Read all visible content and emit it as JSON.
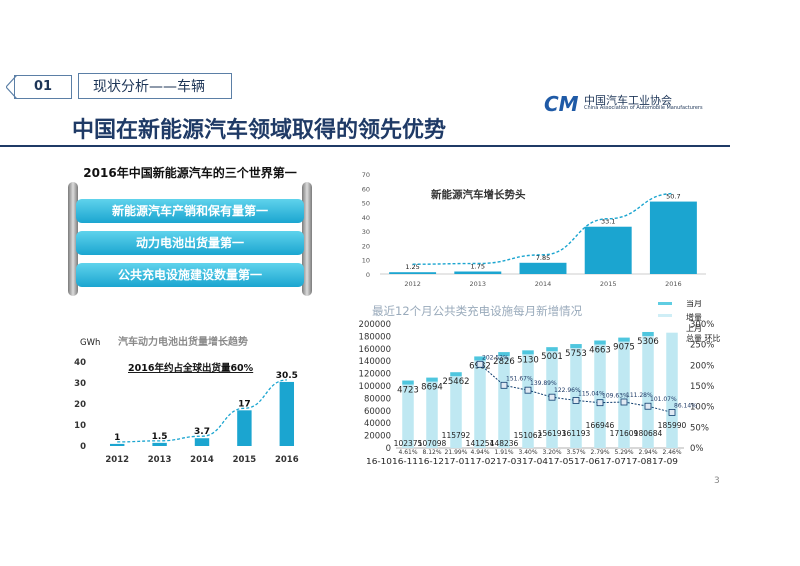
{
  "header": {
    "section_number": "01",
    "section_label": "现状分析——车辆"
  },
  "logo": {
    "mark": "CM",
    "name_cn": "中国汽车工业协会",
    "name_en": "China Association of Automobile Manufacturers"
  },
  "title": "中国在新能源汽车领域取得的领先优势",
  "panel1": {
    "title": "2016年中国新能源汽车的三个世界第一",
    "items": [
      "新能源汽车产销和保有量第一",
      "动力电池出货量第一",
      "公共充电设施建设数量第一"
    ]
  },
  "page_number": "3",
  "colors": {
    "bar": "#1ba5d0",
    "bar_light": "#bfe8f2",
    "title": "#1f3a66",
    "line": "#0f3d6e"
  },
  "chart_data": [
    {
      "id": "growth",
      "type": "bar",
      "title": "新能源汽车增长势头",
      "categories": [
        "2012",
        "2013",
        "2014",
        "2015",
        "2016"
      ],
      "values": [
        1.25,
        1.75,
        7.85,
        33.1,
        50.7
      ],
      "value_labels": [
        "1.25",
        "1.75",
        "7.85",
        "33.1",
        "50.7"
      ],
      "ylim": [
        0,
        70
      ],
      "yticks": [
        "0",
        "10",
        "20",
        "30",
        "40",
        "50",
        "60",
        "70"
      ],
      "xlabel": "",
      "ylabel": ""
    },
    {
      "id": "battery",
      "type": "bar",
      "title": "汽车动力电池出货量增长趋势",
      "ylabel": "GWh",
      "annotation": "2016年约占全球出货量60%",
      "categories": [
        "2012",
        "2013",
        "2014",
        "2015",
        "2016"
      ],
      "values": [
        1,
        1.5,
        3.7,
        17,
        30.5
      ],
      "value_labels": [
        "1",
        "1.5",
        "3.7",
        "17",
        "30.5"
      ],
      "ylim": [
        0,
        40
      ],
      "yticks": [
        "0",
        "10",
        "20",
        "30",
        "40"
      ]
    },
    {
      "id": "charging",
      "type": "bar",
      "title": "最近12个月公共类充电设施每月新增情况",
      "legend": [
        {
          "name": "当月增量",
          "type": "bar"
        },
        {
          "name": "上月总量",
          "type": "bar"
        },
        {
          "name": "环比",
          "type": "line"
        }
      ],
      "categories": [
        "16-10",
        "16-11",
        "16-12",
        "17-01",
        "17-02",
        "17-03",
        "17-04",
        "17-05",
        "17-06",
        "17-07",
        "17-08",
        "17-09"
      ],
      "x_axis_text": "16-1016-1116-1217-0117-0217-0317-0417-0517-0617-0717-0817-09",
      "series": [
        {
          "name": "上月总量",
          "values": [
            102375,
            107098,
            115792,
            141254,
            148236,
            151062,
            156193,
            161193,
            166946,
            171609,
            180684,
            185990
          ],
          "labels": [
            "102375",
            "107098",
            "115792",
            "141254",
            "148236",
            "151062",
            "156193",
            "161193",
            "166946",
            "171609",
            "180684",
            "185990"
          ]
        },
        {
          "name": "当月增量",
          "values": [
            4723,
            8694,
            25462,
            6982,
            2826,
            5130,
            5001,
            5753,
            4663,
            9075,
            5306,
            null
          ],
          "labels": [
            "4723",
            "8694",
            "25462",
            "6982",
            "2826",
            "5130",
            "5001",
            "5753",
            "4663",
            "9075",
            "5306",
            ""
          ]
        },
        {
          "name": "环比",
          "values": [
            4.61,
            8.12,
            21.99,
            4.94,
            1.91,
            3.4,
            3.2,
            3.57,
            2.79,
            5.29,
            2.94,
            2.46
          ],
          "labels": [
            "4.61%",
            "8.12%",
            "21.99%",
            "4.94%",
            "1.91%",
            "3.40%",
            "3.20%",
            "3.57%",
            "2.79%",
            "5.29%",
            "2.94%",
            "2.46%"
          ]
        }
      ],
      "index_series": {
        "values": [
          202.52,
          151.67,
          139.89,
          122.96,
          115.04,
          109.63,
          111.28,
          101.07,
          86.14
        ],
        "labels": [
          "202.52%",
          "151.67%",
          "139.89%",
          "122.96%",
          "115.04%",
          "109.63%",
          "111.28%",
          "101.07%",
          "86.14%"
        ]
      },
      "ylim": [
        0,
        200000
      ],
      "yticks": [
        "0",
        "20000",
        "40000",
        "60000",
        "80000",
        "100000",
        "120000",
        "140000",
        "160000",
        "180000",
        "200000"
      ],
      "y2lim": [
        0,
        300
      ],
      "y2ticks": [
        "0%",
        "50%",
        "100%",
        "150%",
        "200%",
        "250%",
        "300%"
      ]
    }
  ]
}
